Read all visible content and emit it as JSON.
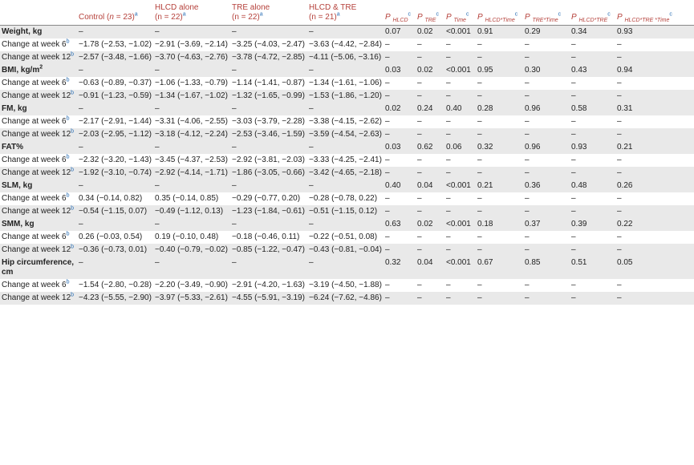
{
  "headers": {
    "control": "Control (",
    "control_n": "n",
    "control_val": " = 23)",
    "hlcd": "HLCD alone",
    "hlcd_n": "(n",
    "hlcd_val": " = 22)",
    "tre": "TRE alone",
    "tre_n": "(n",
    "tre_val": " = 22)",
    "both": "HLCD & TRE",
    "both_n": "(n",
    "both_val": " = 21)",
    "sup_a": "a",
    "sup_c": "c",
    "p_letter": "P",
    "p_hlcd": "HLCD",
    "p_tre": "TRE",
    "p_time": "Time",
    "p_hlcd_time": "HLCD*Time",
    "p_tre_time": "TRE*Time",
    "p_hlcd_tre": "HLCD*TRE",
    "p_hlcd_tre_time": "HLCD*TRE *Time"
  },
  "rows": [
    {
      "type": "section",
      "label": "Weight, kg",
      "sup": "",
      "c": [
        "–",
        "–",
        "–",
        "–"
      ],
      "p": [
        "0.07",
        "0.02",
        "<0.001",
        "0.91",
        "0.29",
        "0.34",
        "0.93"
      ]
    },
    {
      "type": "change",
      "label": "Change at week 6",
      "sup": "b",
      "c": [
        "−1.78 (−2.53, −1.02)",
        "−2.91 (−3.69, −2.14)",
        "−3.25 (−4.03, −2.47)",
        "−3.63 (−4.42, −2.84)"
      ],
      "p": [
        "–",
        "–",
        "–",
        "–",
        "–",
        "–",
        "–"
      ]
    },
    {
      "type": "change",
      "label": "Change at week 12",
      "sup": "b",
      "c": [
        "−2.57 (−3.48, −1.66)",
        "−3.70 (−4.63, −2.76)",
        "−3.78 (−4.72, −2.85)",
        "−4.11 (−5.06, −3.16)"
      ],
      "p": [
        "–",
        "–",
        "–",
        "–",
        "–",
        "–",
        "–"
      ]
    },
    {
      "type": "section",
      "label": "BMI, kg/m",
      "labelsup": "2",
      "sup": "",
      "c": [
        "–",
        "–",
        "–",
        "–"
      ],
      "p": [
        "0.03",
        "0.02",
        "<0.001",
        "0.95",
        "0.30",
        "0.43",
        "0.94"
      ]
    },
    {
      "type": "change",
      "label": "Change at week 6",
      "sup": "b",
      "c": [
        "−0.63 (−0.89, −0.37)",
        "−1.06 (−1.33, −0.79)",
        "−1.14 (−1.41, −0.87)",
        "−1.34 (−1.61, −1.06)"
      ],
      "p": [
        "–",
        "–",
        "–",
        "–",
        "–",
        "–",
        "–"
      ]
    },
    {
      "type": "change",
      "label": "Change at week 12",
      "sup": "b",
      "c": [
        "−0.91 (−1.23, −0.59)",
        "−1.34 (−1.67, −1.02)",
        "−1.32 (−1.65, −0.99)",
        "−1.53 (−1.86, −1.20)"
      ],
      "p": [
        "–",
        "–",
        "–",
        "–",
        "–",
        "–",
        "–"
      ]
    },
    {
      "type": "section",
      "label": "FM, kg",
      "sup": "",
      "c": [
        "–",
        "–",
        "–",
        "–"
      ],
      "p": [
        "0.02",
        "0.24",
        "0.40",
        "0.28",
        "0.96",
        "0.58",
        "0.31"
      ]
    },
    {
      "type": "change",
      "label": "Change at week 6",
      "sup": "b",
      "c": [
        "−2.17 (−2.91, −1.44)",
        "−3.31 (−4.06, −2.55)",
        "−3.03 (−3.79, −2.28)",
        "−3.38 (−4.15, −2.62)"
      ],
      "p": [
        "–",
        "–",
        "–",
        "–",
        "–",
        "–",
        "–"
      ]
    },
    {
      "type": "change",
      "label": "Change at week 12",
      "sup": "b",
      "c": [
        "−2.03 (−2.95, −1.12)",
        "−3.18 (−4.12, −2.24)",
        "−2.53 (−3.46, −1.59)",
        "−3.59 (−4.54, −2.63)"
      ],
      "p": [
        "–",
        "–",
        "–",
        "–",
        "–",
        "–",
        "–"
      ]
    },
    {
      "type": "section",
      "label": "FAT%",
      "sup": "",
      "c": [
        "–",
        "–",
        "–",
        "–"
      ],
      "p": [
        "0.03",
        "0.62",
        "0.06",
        "0.32",
        "0.96",
        "0.93",
        "0.21"
      ]
    },
    {
      "type": "change",
      "label": "Change at week 6",
      "sup": "b",
      "c": [
        "−2.32 (−3.20, −1.43)",
        "−3.45 (−4.37, −2.53)",
        "−2.92 (−3.81, −2.03)",
        "−3.33 (−4.25, −2.41)"
      ],
      "p": [
        "–",
        "–",
        "–",
        "–",
        "–",
        "–",
        "–"
      ]
    },
    {
      "type": "change",
      "label": "Change at week 12",
      "sup": "b",
      "c": [
        "−1.92 (−3.10, −0.74)",
        "−2.92 (−4.14, −1.71)",
        "−1.86 (−3.05, −0.66)",
        "−3.42 (−4.65, −2.18)"
      ],
      "p": [
        "–",
        "–",
        "–",
        "–",
        "–",
        "–",
        "–"
      ]
    },
    {
      "type": "section",
      "label": "SLM, kg",
      "sup": "",
      "c": [
        "–",
        "–",
        "–",
        "–"
      ],
      "p": [
        "0.40",
        "0.04",
        "<0.001",
        "0.21",
        "0.36",
        "0.48",
        "0.26"
      ]
    },
    {
      "type": "change",
      "label": "Change at week 6",
      "sup": "b",
      "c": [
        "0.34 (−0.14, 0.82)",
        "0.35 (−0.14, 0.85)",
        "−0.29 (−0.77, 0.20)",
        "−0.28 (−0.78, 0.22)"
      ],
      "p": [
        "–",
        "–",
        "–",
        "–",
        "–",
        "–",
        "–"
      ]
    },
    {
      "type": "change",
      "label": "Change at week 12",
      "sup": "b",
      "c": [
        "−0.54 (−1.15, 0.07)",
        "−0.49 (−1.12, 0.13)",
        "−1.23 (−1.84, −0.61)",
        "−0.51 (−1.15, 0.12)"
      ],
      "p": [
        "–",
        "–",
        "–",
        "–",
        "–",
        "–",
        "–"
      ]
    },
    {
      "type": "section",
      "label": "SMM, kg",
      "sup": "",
      "c": [
        "–",
        "–",
        "–",
        "–"
      ],
      "p": [
        "0.63",
        "0.02",
        "<0.001",
        "0.18",
        "0.37",
        "0.39",
        "0.22"
      ]
    },
    {
      "type": "change",
      "label": "Change at week 6",
      "sup": "b",
      "c": [
        "0.26 (−0.03, 0.54)",
        "0.19 (−0.10, 0.48)",
        "−0.18 (−0.46, 0.11)",
        "−0.22 (−0.51, 0.08)"
      ],
      "p": [
        "–",
        "–",
        "–",
        "–",
        "–",
        "–",
        "–"
      ]
    },
    {
      "type": "change",
      "label": "Change at week 12",
      "sup": "b",
      "c": [
        "−0.36 (−0.73, 0.01)",
        "−0.40 (−0.79, −0.02)",
        "−0.85 (−1.22, −0.47)",
        "−0.43 (−0.81, −0.04)"
      ],
      "p": [
        "–",
        "–",
        "–",
        "–",
        "–",
        "–",
        "–"
      ]
    },
    {
      "type": "section",
      "label": "Hip circumference, cm",
      "sup": "",
      "c": [
        "–",
        "–",
        "–",
        "–"
      ],
      "p": [
        "0.32",
        "0.04",
        "<0.001",
        "0.67",
        "0.85",
        "0.51",
        "0.05"
      ]
    },
    {
      "type": "change",
      "label": "Change at week 6",
      "sup": "b",
      "c": [
        "−1.54 (−2.80, −0.28)",
        "−2.20 (−3.49, −0.90)",
        "−2.91 (−4.20, −1.63)",
        "−3.19 (−4.50, −1.88)"
      ],
      "p": [
        "–",
        "–",
        "–",
        "–",
        "–",
        "–",
        "–"
      ]
    },
    {
      "type": "change",
      "label": "Change at week 12",
      "sup": "b",
      "c": [
        "−4.23 (−5.55, −2.90)",
        "−3.97 (−5.33, −2.61)",
        "−4.55 (−5.91, −3.19)",
        "−6.24 (−7.62, −4.86)"
      ],
      "p": [
        "–",
        "–",
        "–",
        "–",
        "–",
        "–",
        "–"
      ]
    }
  ],
  "colors": {
    "header_text": "#b5403a",
    "footnote_marker": "#2a6fb5",
    "shade": "#e9e9e9"
  }
}
